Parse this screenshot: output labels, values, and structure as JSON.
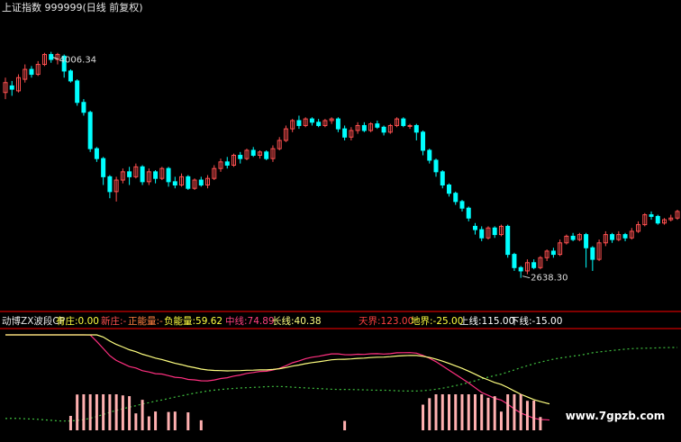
{
  "header": {
    "title": "上证指数 999999(日线 前复权)"
  },
  "chart_data": {
    "type": "candlestick",
    "title": "上证指数 999999(日线 前复权)",
    "colors": {
      "up": "#ff5050",
      "down": "#00ffff",
      "grid": "#ff0000"
    },
    "price_range": [
      2500,
      4200
    ],
    "high_marker": "4006.34",
    "low_marker": "2638.30",
    "candles": [
      [
        3760,
        3820,
        3720,
        3850
      ],
      [
        3800,
        3780,
        3740,
        3830
      ],
      [
        3770,
        3850,
        3760,
        3870
      ],
      [
        3840,
        3900,
        3820,
        3930
      ],
      [
        3900,
        3870,
        3850,
        3920
      ],
      [
        3870,
        3930,
        3860,
        3950
      ],
      [
        3930,
        3990,
        3920,
        4000
      ],
      [
        3990,
        3960,
        3940,
        4006
      ],
      [
        3960,
        3990,
        3930,
        4000
      ],
      [
        3980,
        3890,
        3850,
        3990
      ],
      [
        3890,
        3830,
        3820,
        3900
      ],
      [
        3830,
        3700,
        3680,
        3840
      ],
      [
        3700,
        3640,
        3620,
        3720
      ],
      [
        3640,
        3420,
        3400,
        3650
      ],
      [
        3420,
        3360,
        3340,
        3430
      ],
      [
        3360,
        3250,
        3200,
        3370
      ],
      [
        3250,
        3160,
        3120,
        3260
      ],
      [
        3160,
        3230,
        3100,
        3250
      ],
      [
        3230,
        3280,
        3210,
        3300
      ],
      [
        3280,
        3250,
        3200,
        3310
      ],
      [
        3250,
        3310,
        3240,
        3330
      ],
      [
        3310,
        3220,
        3200,
        3320
      ],
      [
        3220,
        3280,
        3200,
        3300
      ],
      [
        3280,
        3240,
        3210,
        3290
      ],
      [
        3240,
        3300,
        3230,
        3310
      ],
      [
        3300,
        3220,
        3190,
        3310
      ],
      [
        3220,
        3200,
        3180,
        3250
      ],
      [
        3200,
        3250,
        3190,
        3270
      ],
      [
        3250,
        3180,
        3170,
        3260
      ],
      [
        3180,
        3230,
        3170,
        3240
      ],
      [
        3230,
        3200,
        3190,
        3250
      ],
      [
        3200,
        3240,
        3180,
        3260
      ],
      [
        3240,
        3300,
        3230,
        3320
      ],
      [
        3300,
        3340,
        3280,
        3360
      ],
      [
        3340,
        3320,
        3300,
        3370
      ],
      [
        3320,
        3380,
        3310,
        3390
      ],
      [
        3380,
        3360,
        3330,
        3400
      ],
      [
        3360,
        3410,
        3350,
        3420
      ],
      [
        3410,
        3380,
        3370,
        3430
      ],
      [
        3380,
        3400,
        3360,
        3410
      ],
      [
        3400,
        3360,
        3350,
        3410
      ],
      [
        3360,
        3420,
        3340,
        3440
      ],
      [
        3420,
        3470,
        3410,
        3490
      ],
      [
        3470,
        3540,
        3460,
        3560
      ],
      [
        3540,
        3590,
        3520,
        3600
      ],
      [
        3590,
        3560,
        3540,
        3620
      ],
      [
        3560,
        3600,
        3550,
        3610
      ],
      [
        3600,
        3580,
        3560,
        3610
      ],
      [
        3580,
        3560,
        3550,
        3600
      ],
      [
        3560,
        3590,
        3550,
        3600
      ],
      [
        3590,
        3600,
        3570,
        3610
      ],
      [
        3600,
        3540,
        3520,
        3610
      ],
      [
        3540,
        3490,
        3470,
        3560
      ],
      [
        3490,
        3530,
        3470,
        3550
      ],
      [
        3530,
        3560,
        3510,
        3580
      ],
      [
        3560,
        3530,
        3520,
        3580
      ],
      [
        3530,
        3570,
        3520,
        3580
      ],
      [
        3570,
        3550,
        3540,
        3590
      ],
      [
        3550,
        3520,
        3500,
        3560
      ],
      [
        3520,
        3560,
        3510,
        3570
      ],
      [
        3560,
        3600,
        3550,
        3610
      ],
      [
        3600,
        3560,
        3550,
        3610
      ],
      [
        3560,
        3560,
        3540,
        3570
      ],
      [
        3560,
        3520,
        3470,
        3570
      ],
      [
        3520,
        3410,
        3380,
        3530
      ],
      [
        3410,
        3350,
        3330,
        3420
      ],
      [
        3350,
        3280,
        3250,
        3360
      ],
      [
        3280,
        3200,
        3180,
        3290
      ],
      [
        3200,
        3150,
        3130,
        3210
      ],
      [
        3150,
        3100,
        3080,
        3160
      ],
      [
        3100,
        3060,
        3040,
        3110
      ],
      [
        3060,
        3000,
        2980,
        3070
      ],
      [
        2950,
        2930,
        2900,
        2970
      ],
      [
        2930,
        2880,
        2860,
        2950
      ],
      [
        2880,
        2940,
        2870,
        2950
      ],
      [
        2940,
        2900,
        2880,
        2950
      ],
      [
        2900,
        2950,
        2890,
        2960
      ],
      [
        2950,
        2780,
        2760,
        2960
      ],
      [
        2780,
        2700,
        2680,
        2790
      ],
      [
        2700,
        2680,
        2638,
        2710
      ],
      [
        2680,
        2730,
        2660,
        2750
      ],
      [
        2730,
        2700,
        2690,
        2750
      ],
      [
        2700,
        2760,
        2690,
        2770
      ],
      [
        2760,
        2800,
        2740,
        2810
      ],
      [
        2800,
        2780,
        2760,
        2820
      ],
      [
        2780,
        2850,
        2770,
        2870
      ],
      [
        2850,
        2890,
        2840,
        2900
      ],
      [
        2890,
        2870,
        2860,
        2910
      ],
      [
        2870,
        2900,
        2860,
        2910
      ],
      [
        2900,
        2820,
        2700,
        2910
      ],
      [
        2820,
        2750,
        2680,
        2830
      ],
      [
        2750,
        2850,
        2740,
        2870
      ],
      [
        2850,
        2900,
        2830,
        2920
      ],
      [
        2900,
        2870,
        2850,
        2910
      ],
      [
        2870,
        2900,
        2860,
        2920
      ],
      [
        2900,
        2880,
        2860,
        2910
      ],
      [
        2880,
        2920,
        2870,
        2940
      ],
      [
        2920,
        2960,
        2910,
        2980
      ],
      [
        2960,
        3020,
        2950,
        3030
      ],
      [
        3020,
        3010,
        2990,
        3040
      ],
      [
        3010,
        2970,
        2960,
        3020
      ],
      [
        2970,
        2990,
        2960,
        3000
      ],
      [
        2990,
        3000,
        2980,
        3020
      ],
      [
        3000,
        3040,
        2990,
        3050
      ]
    ]
  },
  "indicator": {
    "name": "动博ZX波段CP",
    "items": [
      {
        "label": "有庄:",
        "value": "0.00",
        "color": "#ffff40"
      },
      {
        "label": "新庄:",
        "value": "-",
        "color": "#ff5050"
      },
      {
        "label": "正能量:",
        "value": "-",
        "color": "#ff8040"
      },
      {
        "label": "负能量:",
        "value": "59.62",
        "color": "#ffff40"
      },
      {
        "label": "中线:",
        "value": "74.89",
        "color": "#ff4080"
      },
      {
        "label": "长线:",
        "value": "40.38",
        "color": "#ffff80"
      },
      {
        "label": "天界:",
        "value": "123.00",
        "color": "#ff4040"
      },
      {
        "label": "地界:",
        "value": "-25.00",
        "color": "#ffff40"
      },
      {
        "label": "上线:",
        "value": "115.00",
        "color": "#ffffff"
      },
      {
        "label": "下线:",
        "value": "-15.00",
        "color": "#ffffff"
      }
    ]
  },
  "watermark": {
    "text": "www.7gpzb.com"
  }
}
